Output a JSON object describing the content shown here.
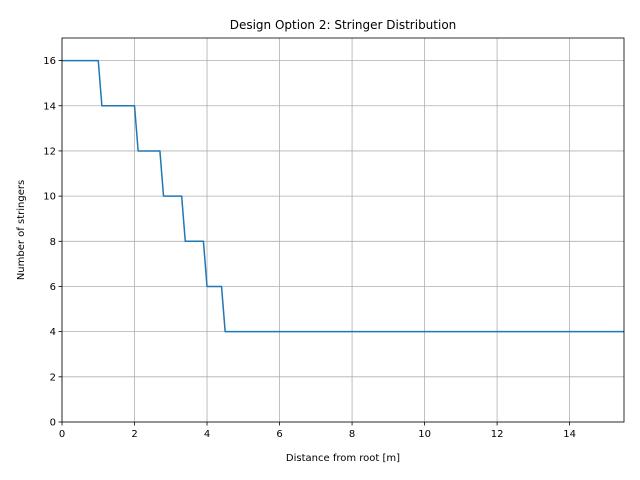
{
  "chart_data": {
    "type": "line",
    "title": "Design Option 2: Stringer Distribution",
    "xlabel": "Distance from root [m]",
    "ylabel": "Number of stringers",
    "xlim": [
      0,
      15.5
    ],
    "ylim": [
      0,
      17
    ],
    "xticks": [
      0,
      2,
      4,
      6,
      8,
      10,
      12,
      14
    ],
    "yticks": [
      0,
      2,
      4,
      6,
      8,
      10,
      12,
      14,
      16
    ],
    "grid": true,
    "color": "#1f77b4",
    "series": [
      {
        "x": [
          0,
          1.0,
          1.1,
          2.0,
          2.1,
          2.7,
          2.8,
          3.3,
          3.4,
          3.9,
          4.0,
          4.4,
          4.5,
          15.5
        ],
        "y": [
          16,
          16,
          14,
          14,
          12,
          12,
          10,
          10,
          8,
          8,
          6,
          6,
          4,
          4
        ]
      }
    ]
  }
}
